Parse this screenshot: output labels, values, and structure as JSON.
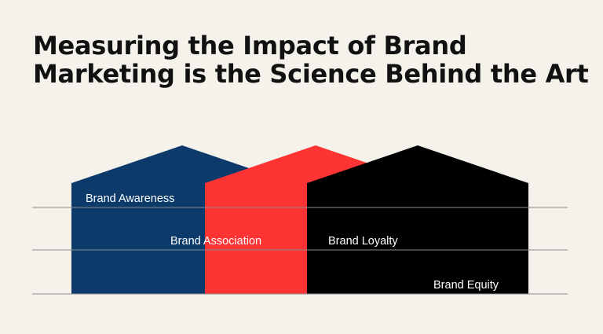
{
  "title": {
    "line1": "Measuring the Impact of Brand",
    "line2": "Marketing is the Science Behind the Art"
  },
  "houses": [
    {
      "label": "Brand Awareness",
      "color": "#0b3a6b"
    },
    {
      "label": "Brand Association",
      "color": "#fe3333"
    },
    {
      "label": "Brand Loyalty",
      "color": "#000000"
    },
    {
      "label": "Brand Equity",
      "color": "#000000"
    }
  ],
  "colors": {
    "background": "#f5f2ec",
    "gridline": "#8a8a8a",
    "label_text": "#ffffff",
    "title_text": "#111111"
  }
}
